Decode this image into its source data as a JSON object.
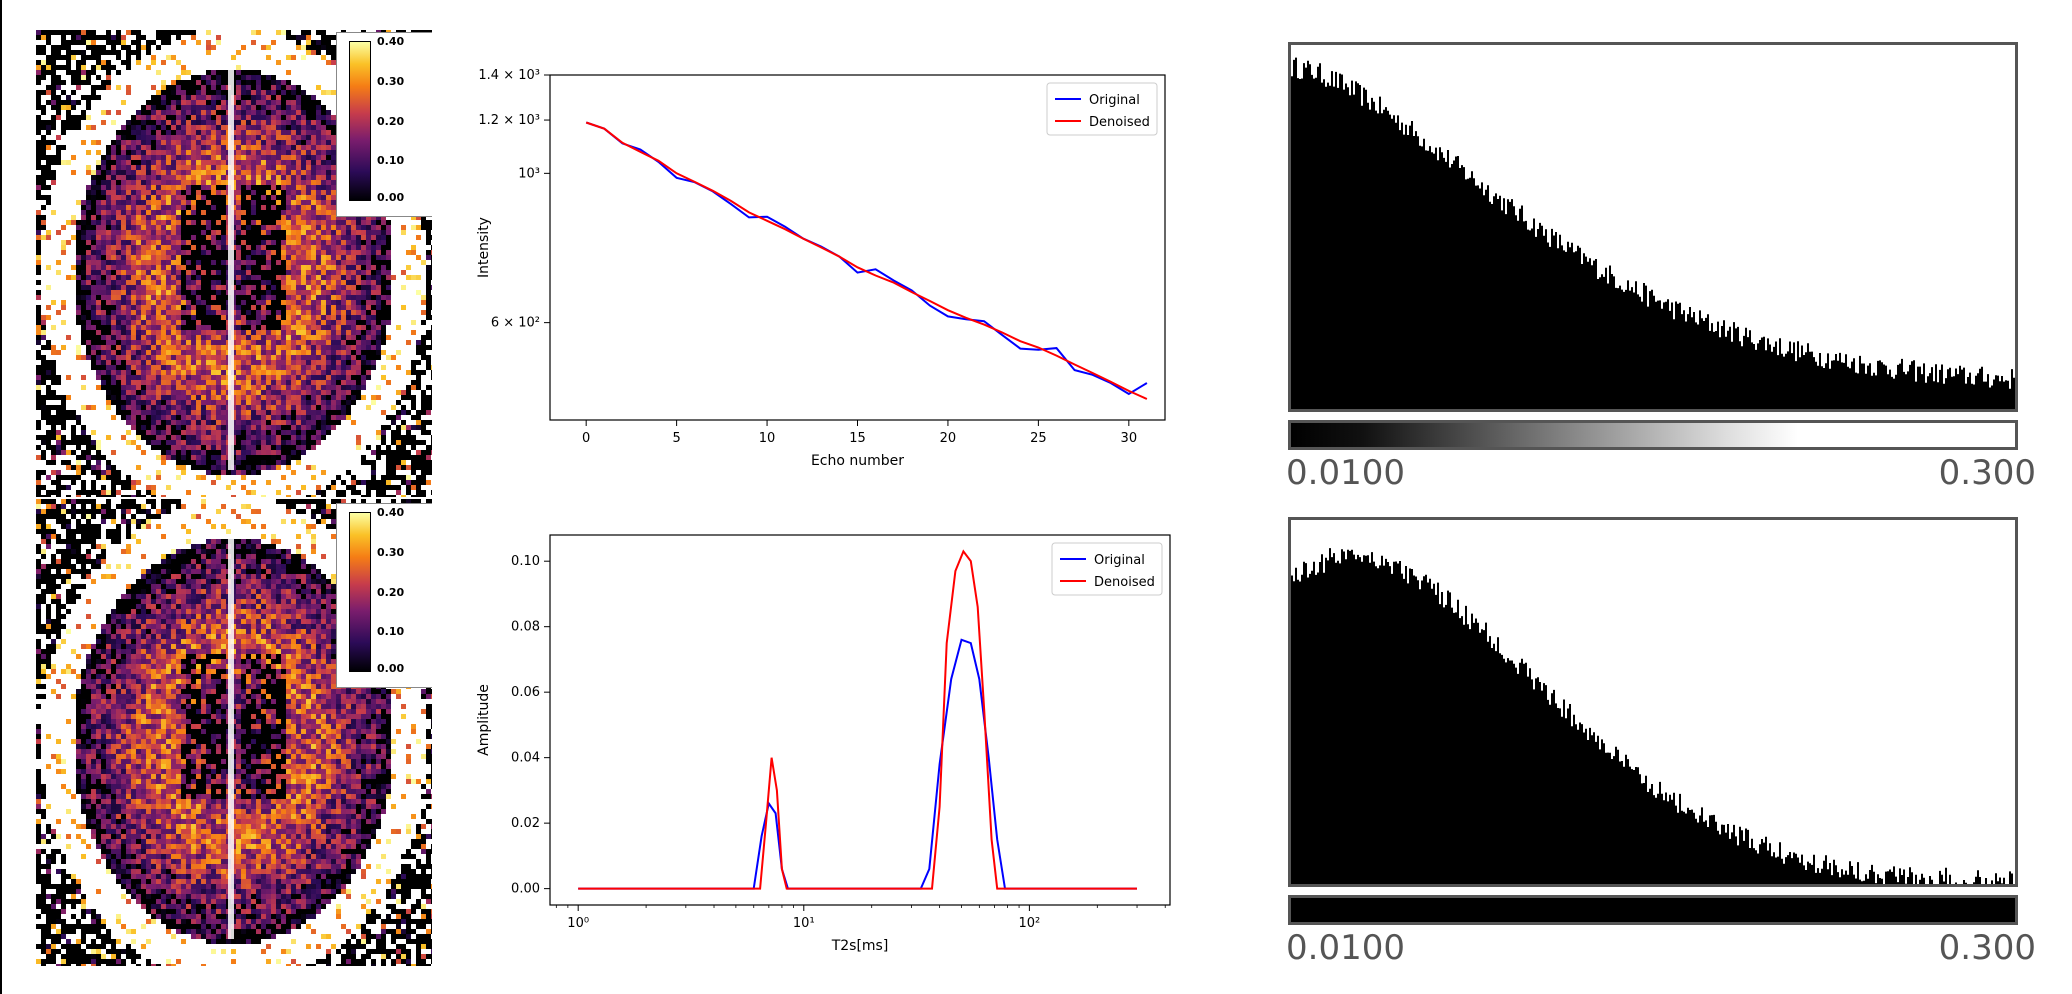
{
  "colorbar": {
    "ticks": [
      "0.40",
      "0.30",
      "0.20",
      "0.10",
      "0.00"
    ]
  },
  "chart_data": [
    {
      "type": "line",
      "xlabel": "Echo number",
      "ylabel": "Intensity",
      "y_scale": "log",
      "xlim": [
        -2,
        32
      ],
      "ylim": [
        430,
        1400
      ],
      "x_ticks": [
        0,
        5,
        10,
        15,
        20,
        25,
        30
      ],
      "y_ticks": [
        {
          "value": 1400,
          "label": "1.4 × 10³"
        },
        {
          "value": 1200,
          "label": "1.2 × 10³"
        },
        {
          "value": 1000,
          "label": "10³"
        },
        {
          "value": 600,
          "label": "6 × 10²"
        }
      ],
      "legend": "top-right",
      "x": [
        0,
        1,
        2,
        3,
        4,
        5,
        6,
        7,
        8,
        9,
        10,
        11,
        12,
        13,
        14,
        15,
        16,
        17,
        18,
        19,
        20,
        21,
        22,
        23,
        24,
        25,
        26,
        27,
        28,
        29,
        30,
        31
      ],
      "series": [
        {
          "name": "Original",
          "color": "#0000ff",
          "values": [
            1190,
            1165,
            1108,
            1085,
            1040,
            985,
            970,
            940,
            900,
            860,
            862,
            833,
            800,
            778,
            752,
            712,
            720,
            693,
            670,
            636,
            613,
            607,
            603,
            575,
            549,
            547,
            550,
            510,
            502,
            488,
            470,
            488
          ]
        },
        {
          "name": "Denoised",
          "color": "#ff0000",
          "values": [
            1190,
            1165,
            1110,
            1076,
            1044,
            1000,
            971,
            942,
            910,
            875,
            850,
            826,
            800,
            776,
            752,
            725,
            705,
            688,
            666,
            646,
            626,
            610,
            596,
            580,
            563,
            551,
            536,
            520,
            505,
            490,
            475,
            462
          ]
        }
      ]
    },
    {
      "type": "line",
      "xlabel": "T2s[ms]",
      "ylabel": "Amplitude",
      "x_scale": "log",
      "xlim": [
        0.75,
        420
      ],
      "ylim": [
        -0.005,
        0.108
      ],
      "x_ticks": [
        {
          "value": 1,
          "label": "10⁰"
        },
        {
          "value": 10,
          "label": "10¹"
        },
        {
          "value": 100,
          "label": "10²"
        }
      ],
      "y_ticks": [
        {
          "value": 0.0,
          "label": "0.00"
        },
        {
          "value": 0.02,
          "label": "0.02"
        },
        {
          "value": 0.04,
          "label": "0.04"
        },
        {
          "value": 0.06,
          "label": "0.06"
        },
        {
          "value": 0.08,
          "label": "0.08"
        },
        {
          "value": 0.1,
          "label": "0.10"
        }
      ],
      "legend": "top-right",
      "series": [
        {
          "name": "Original",
          "color": "#0000ff",
          "x": [
            1,
            6.0,
            6.5,
            7.0,
            7.5,
            8.0,
            8.5,
            33,
            36,
            40,
            45,
            50,
            55,
            60,
            66,
            72,
            78,
            300
          ],
          "values": [
            0,
            0,
            0.016,
            0.026,
            0.023,
            0.006,
            0,
            0,
            0.006,
            0.038,
            0.064,
            0.076,
            0.075,
            0.064,
            0.04,
            0.015,
            0,
            0
          ]
        },
        {
          "name": "Denoised",
          "color": "#ff0000",
          "x": [
            1,
            6.4,
            6.8,
            7.2,
            7.6,
            8.0,
            8.4,
            37,
            40,
            43,
            47,
            51,
            55,
            59,
            63,
            68,
            72,
            300
          ],
          "values": [
            0,
            0,
            0.02,
            0.04,
            0.03,
            0.006,
            0,
            0,
            0.025,
            0.075,
            0.097,
            0.103,
            0.1,
            0.086,
            0.055,
            0.015,
            0,
            0
          ]
        }
      ]
    },
    {
      "type": "bar",
      "subtype": "histogram",
      "xlim_labels": [
        "0.0100",
        "0.300"
      ],
      "shape": "decaying from left, long flat tail"
    },
    {
      "type": "bar",
      "subtype": "histogram",
      "xlim_labels": [
        "0.0100",
        "0.300"
      ],
      "shape": "rising then decaying, tail near zero"
    }
  ]
}
